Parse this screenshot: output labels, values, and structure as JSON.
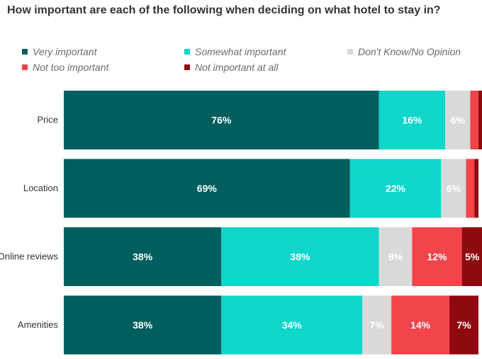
{
  "title": "How important are each of the following when deciding on what hotel to stay in?",
  "legend": [
    {
      "label": "Very important",
      "color": "#005e5e"
    },
    {
      "label": "Somewhat important",
      "color": "#0ed6cb"
    },
    {
      "label": "Don't Know/No Opinion",
      "color": "#d9d9d9"
    },
    {
      "label": "Not too important",
      "color": "#f2444b"
    },
    {
      "label": "Not important at all",
      "color": "#8f0a0f"
    }
  ],
  "chart_data": {
    "type": "bar",
    "orientation": "horizontal",
    "stacked": true,
    "title": "How important are each of the following when deciding on what hotel to stay in?",
    "legend_position": "top",
    "grid": false,
    "categories": [
      "Price",
      "Location",
      "Online reviews",
      "Amenities"
    ],
    "xlim": [
      0,
      100
    ],
    "series": [
      {
        "name": "Very important",
        "color": "#005e5e",
        "values": [
          76,
          69,
          38,
          38
        ],
        "labels": [
          "76%",
          "69%",
          "38%",
          "38%"
        ]
      },
      {
        "name": "Somewhat important",
        "color": "#0ed6cb",
        "values": [
          16,
          22,
          38,
          34
        ],
        "labels": [
          "16%",
          "22%",
          "38%",
          "34%"
        ]
      },
      {
        "name": "Don't Know/No Opinion",
        "color": "#d9d9d9",
        "values": [
          6,
          6,
          8,
          7
        ],
        "labels": [
          "6%",
          "6%",
          "8%",
          "7%"
        ]
      },
      {
        "name": "Not too important",
        "color": "#f2444b",
        "values": [
          2,
          2,
          12,
          14
        ],
        "labels": [
          "",
          "",
          "12%",
          "14%"
        ]
      },
      {
        "name": "Not important at all",
        "color": "#8f0a0f",
        "values": [
          1,
          1,
          5,
          7
        ],
        "labels": [
          "",
          "",
          "5%",
          "7%"
        ]
      }
    ]
  }
}
